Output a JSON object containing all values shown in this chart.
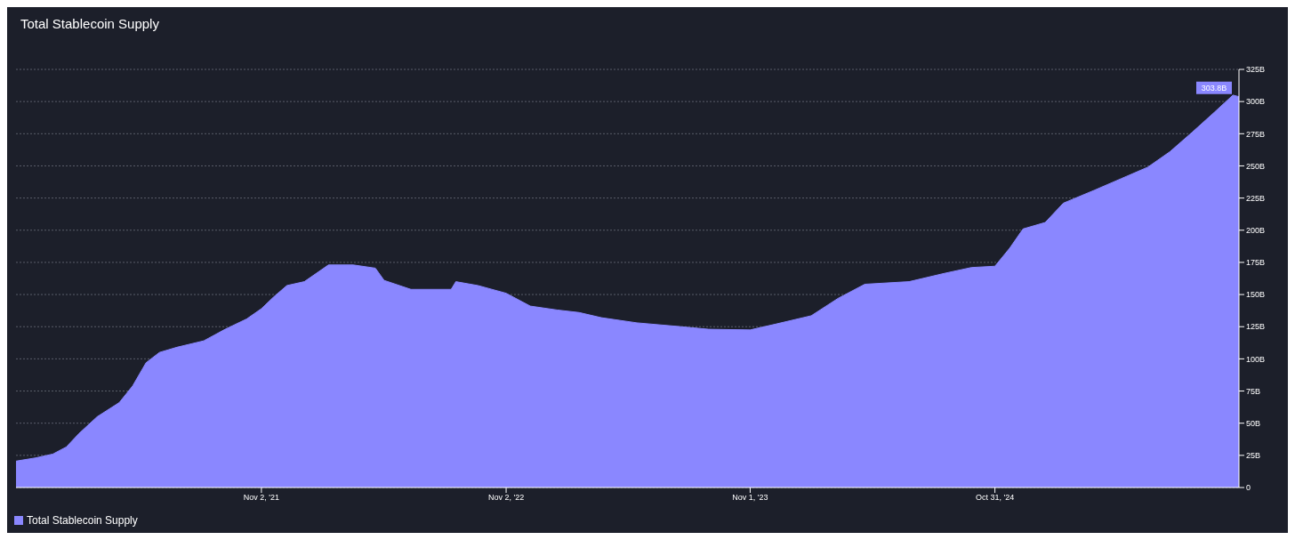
{
  "chart_data": {
    "type": "area",
    "title": "Total Stablecoin Supply",
    "x": [
      "2020-11-01",
      "2020-11-30",
      "2020-12-26",
      "2021-01-15",
      "2021-02-03",
      "2021-03-02",
      "2021-04-04",
      "2021-04-24",
      "2021-05-14",
      "2021-06-03",
      "2021-06-29",
      "2021-08-08",
      "2021-09-09",
      "2021-10-11",
      "2021-11-02",
      "2021-11-20",
      "2021-12-10",
      "2022-01-05",
      "2022-02-10",
      "2022-03-19",
      "2022-04-21",
      "2022-05-04",
      "2022-06-13",
      "2022-08-12",
      "2022-08-19",
      "2022-09-21",
      "2022-11-02",
      "2022-12-08",
      "2023-01-17",
      "2023-02-19",
      "2023-03-24",
      "2023-05-16",
      "2023-07-21",
      "2023-08-31",
      "2023-11-01",
      "2023-12-09",
      "2024-01-31",
      "2024-03-11",
      "2024-04-20",
      "2024-06-25",
      "2024-08-17",
      "2024-09-26",
      "2024-10-31",
      "2024-11-22",
      "2024-12-12",
      "2025-01-14",
      "2025-02-10",
      "2025-03-28",
      "2025-05-07",
      "2025-06-16",
      "2025-07-19",
      "2025-08-21",
      "2025-09-24",
      "2025-10-21",
      "2025-10-30"
    ],
    "series": [
      {
        "name": "Total Stablecoin Supply",
        "color": "#8a87ff",
        "values": [
          20.5,
          23,
          26,
          31.5,
          42,
          55,
          66,
          79,
          97,
          105,
          109,
          114,
          123,
          131,
          139,
          148,
          157,
          160,
          173,
          173,
          170.5,
          161,
          154,
          154,
          160,
          157,
          151,
          141,
          138,
          136,
          132,
          128,
          125,
          123,
          122.5,
          127,
          133.5,
          147,
          158,
          160,
          166.5,
          171,
          172,
          186,
          201,
          206,
          221,
          231,
          240,
          249,
          261,
          276,
          292,
          305,
          303.8
        ]
      }
    ],
    "xlim": [
      "2020-11-01",
      "2025-10-30"
    ],
    "xticks": [
      {
        "value": "2021-11-02",
        "label": "Nov 2, '21"
      },
      {
        "value": "2022-11-02",
        "label": "Nov 2, '22"
      },
      {
        "value": "2023-11-01",
        "label": "Nov 1, '23"
      },
      {
        "value": "2024-10-31",
        "label": "Oct 31, '24"
      }
    ],
    "ylim": [
      0,
      325
    ],
    "yticks": [
      0,
      {
        "value": 25,
        "label": "25B"
      },
      {
        "value": 50,
        "label": "50B"
      },
      {
        "value": 75,
        "label": "75B"
      },
      {
        "value": 100,
        "label": "100B"
      },
      {
        "value": 125,
        "label": "125B"
      },
      {
        "value": 150,
        "label": "150B"
      },
      {
        "value": 175,
        "label": "175B"
      },
      {
        "value": 200,
        "label": "200B"
      },
      {
        "value": 225,
        "label": "225B"
      },
      {
        "value": 250,
        "label": "250B"
      },
      {
        "value": 275,
        "label": "275B"
      },
      {
        "value": 300,
        "label": "300B"
      },
      {
        "value": 325,
        "label": "325B"
      }
    ],
    "grid": "y",
    "legend": "bottom left",
    "annotations": [
      {
        "text": "303.8B",
        "x": "2025-10-30",
        "y": 303.8
      }
    ]
  }
}
